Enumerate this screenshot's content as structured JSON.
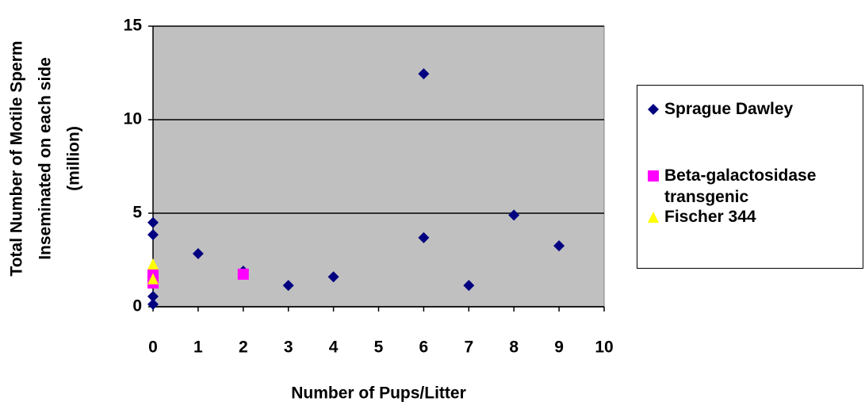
{
  "chart_data": {
    "type": "scatter",
    "x_label": "Number of Pups/Litter",
    "y_label": [
      "Total Number of Motile Sperm",
      "Inseminated on each side",
      "(million)"
    ],
    "xlim": [
      0,
      10
    ],
    "xticks": [
      0,
      1,
      2,
      3,
      4,
      5,
      6,
      7,
      8,
      9,
      10
    ],
    "ylim": [
      0,
      15
    ],
    "yticks": [
      0,
      5,
      10,
      15
    ],
    "grid": true,
    "plot_background": "#c0c0c0",
    "legend": "right",
    "series": [
      {
        "name": "Sprague Dawley",
        "color": "#000080",
        "marker": "diamond",
        "x": [
          0,
          0,
          0,
          0,
          1,
          2,
          3,
          4,
          6,
          6,
          7,
          8,
          9
        ],
        "values": [
          4.5,
          3.85,
          0.55,
          0.13,
          2.84,
          1.9,
          1.14,
          1.6,
          12.45,
          3.69,
          1.14,
          4.9,
          3.26
        ]
      },
      {
        "name": "Beta-galactosidase transgenic",
        "color": "#ff00ff",
        "marker": "square",
        "x": [
          0,
          0,
          2
        ],
        "values": [
          1.7,
          1.27,
          1.74
        ]
      },
      {
        "name": "Fischer 344",
        "color": "#ffff00",
        "marker": "triangle",
        "x": [
          0,
          0
        ],
        "values": [
          2.29,
          1.5
        ]
      }
    ]
  }
}
